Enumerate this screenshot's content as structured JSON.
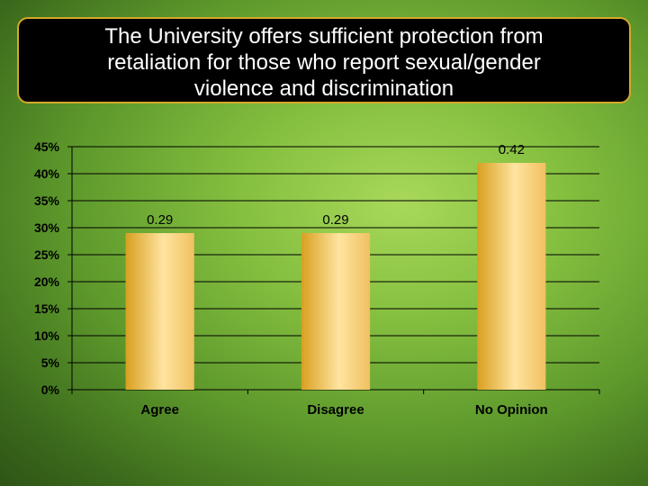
{
  "chart_data": {
    "type": "bar",
    "title_lines": [
      "The University offers sufficient protection from",
      "retaliation for those who report sexual/gender",
      "violence and discrimination"
    ],
    "categories": [
      "Agree",
      "Disagree",
      "No Opinion"
    ],
    "values": [
      0.29,
      0.29,
      0.42
    ],
    "data_labels": [
      "0.29",
      "0.29",
      "0.42"
    ],
    "ylim": [
      0,
      0.45
    ],
    "yticks": [
      0,
      0.05,
      0.1,
      0.15,
      0.2,
      0.25,
      0.3,
      0.35,
      0.4,
      0.45
    ],
    "ytick_labels": [
      "0%",
      "5%",
      "10%",
      "15%",
      "20%",
      "25%",
      "30%",
      "35%",
      "40%",
      "45%"
    ],
    "grid": true,
    "bar_color": "#f0c060",
    "bar_color_dark": "#d8a020",
    "bar_color_light": "#ffe4a0"
  }
}
